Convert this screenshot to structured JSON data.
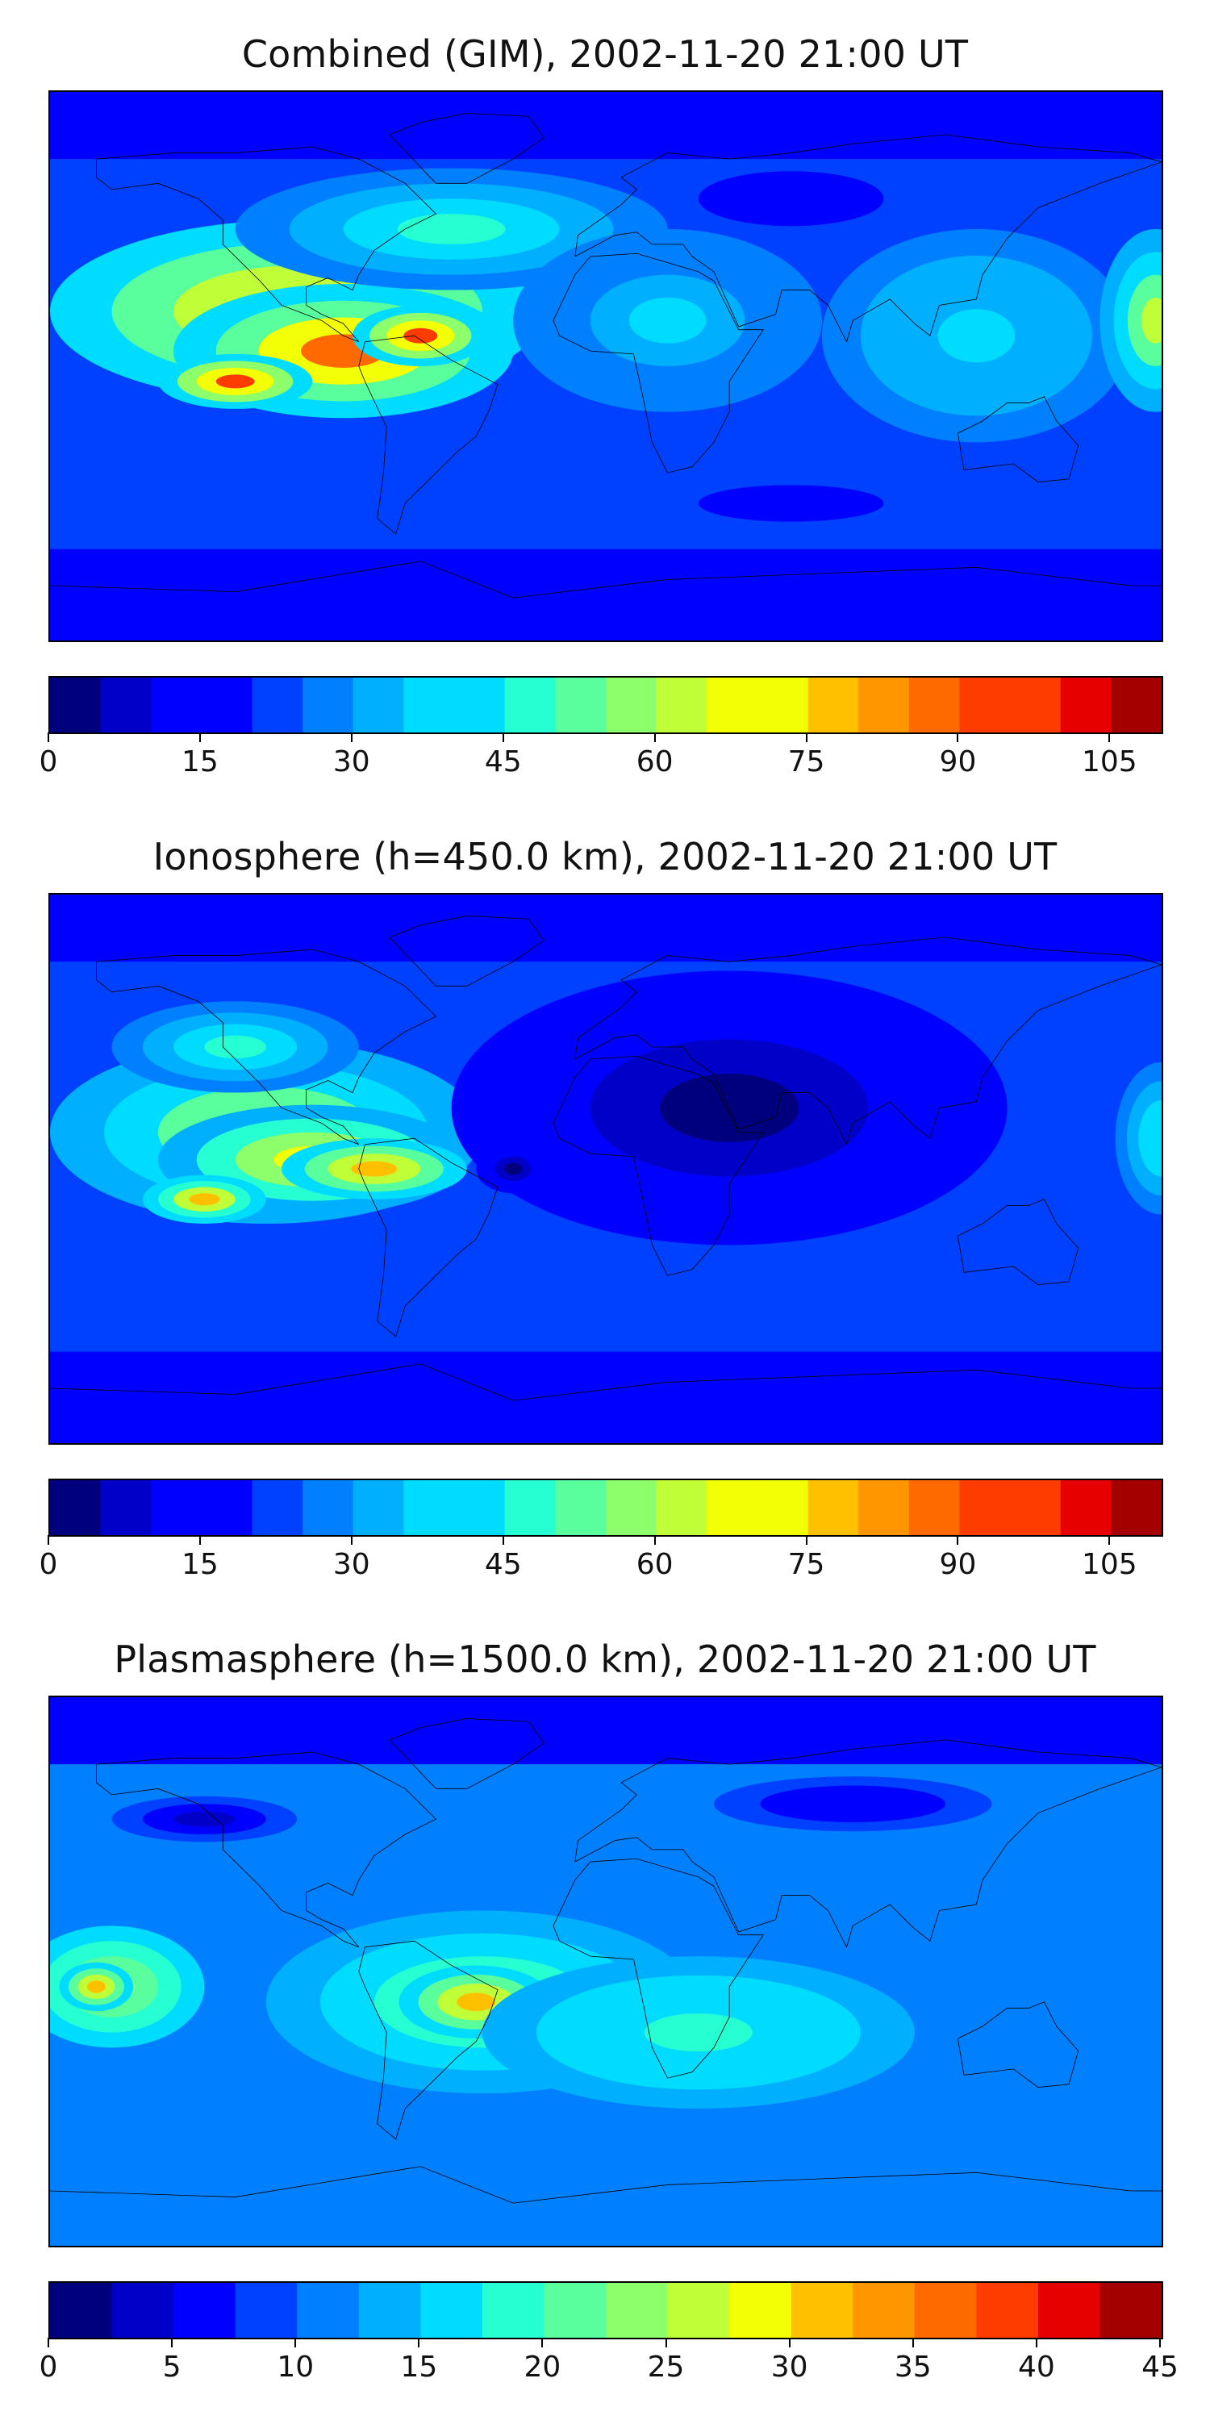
{
  "panels": [
    {
      "title": "Combined (GIM), 2002-11-20 21:00 UT",
      "colorbar": {
        "min": 0,
        "max": 110,
        "levels": 22,
        "ticks": [
          0,
          15,
          30,
          45,
          60,
          75,
          90,
          105
        ]
      },
      "blobs": [
        {
          "lon": -100,
          "lat": 18,
          "rx": 80,
          "ry": 30,
          "value": 78
        },
        {
          "lon": -85,
          "lat": 5,
          "rx": 55,
          "ry": 22,
          "value": 86
        },
        {
          "lon": -120,
          "lat": -5,
          "rx": 25,
          "ry": 9,
          "value": 92
        },
        {
          "lon": -60,
          "lat": 10,
          "rx": 22,
          "ry": 10,
          "value": 92
        },
        {
          "lon": -50,
          "lat": 45,
          "rx": 70,
          "ry": 20,
          "value": 45
        },
        {
          "lon": 20,
          "lat": 15,
          "rx": 50,
          "ry": 30,
          "value": 35
        },
        {
          "lon": 120,
          "lat": 10,
          "rx": 50,
          "ry": 35,
          "value": 38
        },
        {
          "lon": 178,
          "lat": 15,
          "rx": 18,
          "ry": 30,
          "value": 62
        },
        {
          "lon": 60,
          "lat": 55,
          "rx": 40,
          "ry": 12,
          "value": 15
        },
        {
          "lon": 60,
          "lat": -45,
          "rx": 60,
          "ry": 12,
          "value": 18
        }
      ]
    },
    {
      "title": "Ionosphere  (h=450.0 km), 2002-11-20 21:00 UT",
      "colorbar": {
        "min": 0,
        "max": 110,
        "levels": 22,
        "ticks": [
          0,
          15,
          30,
          45,
          60,
          75,
          90,
          105
        ]
      },
      "blobs": [
        {
          "lon": -110,
          "lat": 12,
          "rx": 70,
          "ry": 30,
          "value": 62
        },
        {
          "lon": -95,
          "lat": 3,
          "rx": 50,
          "ry": 18,
          "value": 70
        },
        {
          "lon": -75,
          "lat": 0,
          "rx": 30,
          "ry": 10,
          "value": 78
        },
        {
          "lon": -130,
          "lat": -10,
          "rx": 20,
          "ry": 8,
          "value": 76
        },
        {
          "lon": -120,
          "lat": 40,
          "rx": 40,
          "ry": 15,
          "value": 45
        },
        {
          "lon": 180,
          "lat": 10,
          "rx": 15,
          "ry": 25,
          "value": 40
        },
        {
          "lon": 40,
          "lat": 20,
          "rx": 90,
          "ry": 45,
          "value": 2
        },
        {
          "lon": -30,
          "lat": 0,
          "rx": 12,
          "ry": 8,
          "value": 2
        }
      ]
    },
    {
      "title": "Plasmasphere (h=1500.0 km), 2002-11-20 21:00 UT",
      "colorbar": {
        "min": 0,
        "max": 45,
        "levels": 18,
        "ticks": [
          0,
          5,
          10,
          15,
          20,
          25,
          30,
          35,
          40,
          45
        ]
      },
      "blobs": [
        {
          "lon": -40,
          "lat": -10,
          "rx": 70,
          "ry": 30,
          "value": 22
        },
        {
          "lon": -42,
          "lat": -10,
          "rx": 25,
          "ry": 12,
          "value": 32
        },
        {
          "lon": -160,
          "lat": -5,
          "rx": 30,
          "ry": 20,
          "value": 24
        },
        {
          "lon": -165,
          "lat": -5,
          "rx": 12,
          "ry": 8,
          "value": 30
        },
        {
          "lon": 30,
          "lat": -20,
          "rx": 70,
          "ry": 25,
          "value": 18
        },
        {
          "lon": 150,
          "lat": 0,
          "rx": 50,
          "ry": 30,
          "value": 10
        },
        {
          "lon": -130,
          "lat": 50,
          "rx": 40,
          "ry": 10,
          "value": 4
        },
        {
          "lon": 80,
          "lat": 55,
          "rx": 60,
          "ry": 12,
          "value": 5
        }
      ]
    }
  ],
  "colors": [
    "#00007f",
    "#0000c8",
    "#0000ff",
    "#0040ff",
    "#0080ff",
    "#00b0ff",
    "#00dcff",
    "#26ffd1",
    "#5aff9d",
    "#8cff6a",
    "#c0ff37",
    "#f2ff05",
    "#ffc000",
    "#ff9600",
    "#ff6a00",
    "#ff3c00",
    "#e60000",
    "#a50000"
  ]
}
